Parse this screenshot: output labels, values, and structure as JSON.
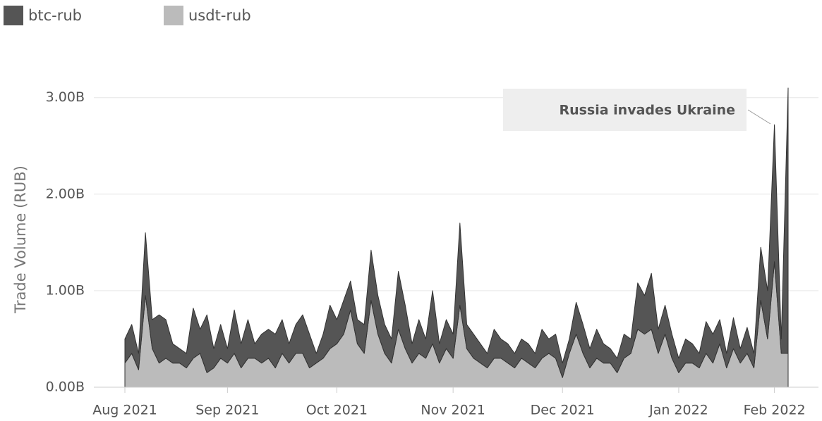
{
  "chart_data": {
    "type": "area",
    "stacked": true,
    "y_label": "Trade Volume (RUB)",
    "annotation": "Russia invades Ukraine",
    "categories": [
      "Aug 2021",
      null,
      null,
      null,
      null,
      null,
      null,
      null,
      null,
      null,
      null,
      null,
      null,
      null,
      null,
      "Sep 2021",
      null,
      null,
      null,
      null,
      null,
      null,
      null,
      null,
      null,
      null,
      null,
      null,
      null,
      null,
      null,
      "Oct 2021",
      null,
      null,
      null,
      null,
      null,
      null,
      null,
      null,
      null,
      null,
      null,
      null,
      null,
      null,
      null,
      null,
      "Nov 2021",
      null,
      null,
      null,
      null,
      null,
      null,
      null,
      null,
      null,
      null,
      null,
      null,
      null,
      null,
      null,
      "Dec 2021",
      null,
      null,
      null,
      null,
      null,
      null,
      null,
      null,
      null,
      null,
      null,
      null,
      null,
      null,
      null,
      null,
      "Jan 2022",
      null,
      null,
      null,
      null,
      null,
      null,
      null,
      null,
      null,
      null,
      null,
      null,
      null,
      "Feb 2022",
      null,
      null
    ],
    "series": [
      {
        "name": "btc-rub",
        "color": "#555555",
        "values": [
          250000000,
          300000000,
          170000000,
          650000000,
          300000000,
          500000000,
          400000000,
          200000000,
          150000000,
          150000000,
          520000000,
          250000000,
          600000000,
          200000000,
          350000000,
          150000000,
          450000000,
          250000000,
          400000000,
          150000000,
          300000000,
          300000000,
          350000000,
          350000000,
          200000000,
          300000000,
          400000000,
          350000000,
          100000000,
          250000000,
          450000000,
          250000000,
          350000000,
          300000000,
          250000000,
          300000000,
          520000000,
          400000000,
          300000000,
          250000000,
          600000000,
          450000000,
          200000000,
          350000000,
          200000000,
          550000000,
          200000000,
          300000000,
          250000000,
          850000000,
          250000000,
          250000000,
          200000000,
          150000000,
          300000000,
          200000000,
          200000000,
          150000000,
          200000000,
          200000000,
          150000000,
          300000000,
          150000000,
          250000000,
          150000000,
          150000000,
          330000000,
          300000000,
          200000000,
          300000000,
          200000000,
          150000000,
          150000000,
          250000000,
          150000000,
          480000000,
          400000000,
          580000000,
          250000000,
          300000000,
          250000000,
          150000000,
          250000000,
          200000000,
          150000000,
          330000000,
          300000000,
          250000000,
          150000000,
          320000000,
          150000000,
          270000000,
          150000000,
          550000000,
          500000000,
          1420000000,
          150000000,
          2750000000
        ]
      },
      {
        "name": "usdt-rub",
        "color": "#bbbbbb",
        "values": [
          250000000,
          350000000,
          180000000,
          950000000,
          400000000,
          250000000,
          300000000,
          250000000,
          250000000,
          200000000,
          300000000,
          350000000,
          150000000,
          200000000,
          300000000,
          250000000,
          350000000,
          200000000,
          300000000,
          300000000,
          250000000,
          300000000,
          200000000,
          350000000,
          250000000,
          350000000,
          350000000,
          200000000,
          250000000,
          300000000,
          400000000,
          450000000,
          550000000,
          800000000,
          450000000,
          350000000,
          900000000,
          550000000,
          350000000,
          250000000,
          600000000,
          400000000,
          250000000,
          350000000,
          300000000,
          450000000,
          250000000,
          400000000,
          300000000,
          850000000,
          400000000,
          300000000,
          250000000,
          200000000,
          300000000,
          300000000,
          250000000,
          200000000,
          300000000,
          250000000,
          200000000,
          300000000,
          350000000,
          300000000,
          100000000,
          350000000,
          550000000,
          350000000,
          200000000,
          300000000,
          250000000,
          250000000,
          150000000,
          300000000,
          350000000,
          600000000,
          550000000,
          600000000,
          350000000,
          550000000,
          300000000,
          150000000,
          250000000,
          250000000,
          200000000,
          350000000,
          250000000,
          450000000,
          200000000,
          400000000,
          250000000,
          350000000,
          200000000,
          900000000,
          500000000,
          1300000000,
          350000000,
          350000000
        ]
      }
    ],
    "ylim": [
      0,
      3100000000
    ],
    "yticks": [
      {
        "value": 0,
        "label": "0.00B"
      },
      {
        "value": 1000000000,
        "label": "1.00B"
      },
      {
        "value": 2000000000,
        "label": "2.00B"
      },
      {
        "value": 3000000000,
        "label": "3.00B"
      }
    ],
    "grid": true
  }
}
